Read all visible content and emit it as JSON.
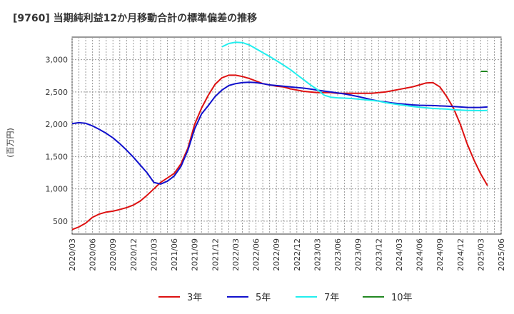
{
  "chart_data": {
    "type": "line",
    "title": "[9760]  当期純利益12か月移動合計の標準偏差の推移",
    "ylabel": "(百万円)",
    "xlabel": "",
    "ylim": [
      300,
      3350
    ],
    "yticks": [
      500,
      1000,
      1500,
      2000,
      2500,
      3000
    ],
    "ytick_labels": [
      "500",
      "1,000",
      "1,500",
      "2,000",
      "2,500",
      "3,000"
    ],
    "xticks": [
      "2020/03",
      "2020/06",
      "2020/09",
      "2020/12",
      "2021/03",
      "2021/06",
      "2021/09",
      "2021/12",
      "2022/03",
      "2022/06",
      "2022/09",
      "2022/12",
      "2023/03",
      "2023/06",
      "2023/09",
      "2023/12",
      "2024/03",
      "2024/06",
      "2024/09",
      "2024/12",
      "2025/03",
      "2025/06"
    ],
    "grid": true,
    "legend_position": "bottom",
    "series": [
      {
        "name": "3年",
        "color": "#dd1111",
        "points": [
          [
            "2020/03",
            370
          ],
          [
            "2020/04",
            410
          ],
          [
            "2020/05",
            470
          ],
          [
            "2020/06",
            560
          ],
          [
            "2020/07",
            610
          ],
          [
            "2020/08",
            640
          ],
          [
            "2020/09",
            655
          ],
          [
            "2020/10",
            680
          ],
          [
            "2020/11",
            710
          ],
          [
            "2020/12",
            750
          ],
          [
            "2021/01",
            810
          ],
          [
            "2021/02",
            900
          ],
          [
            "2021/03",
            1000
          ],
          [
            "2021/04",
            1100
          ],
          [
            "2021/05",
            1170
          ],
          [
            "2021/06",
            1240
          ],
          [
            "2021/07",
            1390
          ],
          [
            "2021/08",
            1630
          ],
          [
            "2021/09",
            2000
          ],
          [
            "2021/10",
            2250
          ],
          [
            "2021/11",
            2450
          ],
          [
            "2021/12",
            2620
          ],
          [
            "2022/01",
            2720
          ],
          [
            "2022/02",
            2760
          ],
          [
            "2022/03",
            2760
          ],
          [
            "2022/04",
            2740
          ],
          [
            "2022/05",
            2710
          ],
          [
            "2022/06",
            2670
          ],
          [
            "2022/07",
            2630
          ],
          [
            "2022/08",
            2610
          ],
          [
            "2022/09",
            2590
          ],
          [
            "2022/10",
            2580
          ],
          [
            "2022/11",
            2550
          ],
          [
            "2022/12",
            2530
          ],
          [
            "2023/01",
            2510
          ],
          [
            "2023/02",
            2500
          ],
          [
            "2023/03",
            2490
          ],
          [
            "2023/04",
            2490
          ],
          [
            "2023/05",
            2490
          ],
          [
            "2023/06",
            2480
          ],
          [
            "2023/07",
            2480
          ],
          [
            "2023/08",
            2480
          ],
          [
            "2023/09",
            2480
          ],
          [
            "2023/10",
            2480
          ],
          [
            "2023/11",
            2480
          ],
          [
            "2023/12",
            2490
          ],
          [
            "2024/01",
            2500
          ],
          [
            "2024/02",
            2520
          ],
          [
            "2024/03",
            2540
          ],
          [
            "2024/04",
            2560
          ],
          [
            "2024/05",
            2580
          ],
          [
            "2024/06",
            2610
          ],
          [
            "2024/07",
            2640
          ],
          [
            "2024/08",
            2645
          ],
          [
            "2024/09",
            2580
          ],
          [
            "2024/10",
            2430
          ],
          [
            "2024/11",
            2250
          ],
          [
            "2024/12",
            2000
          ],
          [
            "2025/01",
            1700
          ],
          [
            "2025/02",
            1450
          ],
          [
            "2025/03",
            1230
          ],
          [
            "2025/04",
            1050
          ]
        ]
      },
      {
        "name": "5年",
        "color": "#1111cc",
        "points": [
          [
            "2020/03",
            2010
          ],
          [
            "2020/04",
            2025
          ],
          [
            "2020/05",
            2015
          ],
          [
            "2020/06",
            1975
          ],
          [
            "2020/07",
            1920
          ],
          [
            "2020/08",
            1860
          ],
          [
            "2020/09",
            1790
          ],
          [
            "2020/10",
            1700
          ],
          [
            "2020/11",
            1600
          ],
          [
            "2020/12",
            1490
          ],
          [
            "2021/01",
            1370
          ],
          [
            "2021/02",
            1250
          ],
          [
            "2021/03",
            1100
          ],
          [
            "2021/04",
            1075
          ],
          [
            "2021/05",
            1120
          ],
          [
            "2021/06",
            1200
          ],
          [
            "2021/07",
            1350
          ],
          [
            "2021/08",
            1600
          ],
          [
            "2021/09",
            1930
          ],
          [
            "2021/10",
            2160
          ],
          [
            "2021/11",
            2290
          ],
          [
            "2021/12",
            2430
          ],
          [
            "2022/01",
            2530
          ],
          [
            "2022/02",
            2600
          ],
          [
            "2022/03",
            2630
          ],
          [
            "2022/04",
            2645
          ],
          [
            "2022/05",
            2650
          ],
          [
            "2022/06",
            2645
          ],
          [
            "2022/07",
            2630
          ],
          [
            "2022/08",
            2610
          ],
          [
            "2022/09",
            2600
          ],
          [
            "2022/10",
            2590
          ],
          [
            "2022/11",
            2580
          ],
          [
            "2022/12",
            2570
          ],
          [
            "2023/01",
            2560
          ],
          [
            "2023/02",
            2545
          ],
          [
            "2023/03",
            2530
          ],
          [
            "2023/04",
            2515
          ],
          [
            "2023/05",
            2500
          ],
          [
            "2023/06",
            2485
          ],
          [
            "2023/07",
            2470
          ],
          [
            "2023/08",
            2450
          ],
          [
            "2023/09",
            2430
          ],
          [
            "2023/10",
            2405
          ],
          [
            "2023/11",
            2380
          ],
          [
            "2023/12",
            2360
          ],
          [
            "2024/01",
            2345
          ],
          [
            "2024/02",
            2330
          ],
          [
            "2024/03",
            2320
          ],
          [
            "2024/04",
            2310
          ],
          [
            "2024/05",
            2300
          ],
          [
            "2024/06",
            2295
          ],
          [
            "2024/07",
            2292
          ],
          [
            "2024/08",
            2290
          ],
          [
            "2024/09",
            2285
          ],
          [
            "2024/10",
            2280
          ],
          [
            "2024/11",
            2275
          ],
          [
            "2024/12",
            2268
          ],
          [
            "2025/01",
            2262
          ],
          [
            "2025/02",
            2260
          ],
          [
            "2025/03",
            2262
          ],
          [
            "2025/04",
            2268
          ]
        ]
      },
      {
        "name": "7年",
        "color": "#22eeee",
        "points": [
          [
            "2022/01",
            3200
          ],
          [
            "2022/02",
            3250
          ],
          [
            "2022/03",
            3270
          ],
          [
            "2022/04",
            3265
          ],
          [
            "2022/05",
            3230
          ],
          [
            "2022/06",
            3170
          ],
          [
            "2022/07",
            3110
          ],
          [
            "2022/08",
            3050
          ],
          [
            "2022/09",
            2985
          ],
          [
            "2022/10",
            2920
          ],
          [
            "2022/11",
            2850
          ],
          [
            "2022/12",
            2770
          ],
          [
            "2023/01",
            2690
          ],
          [
            "2023/02",
            2610
          ],
          [
            "2023/03",
            2540
          ],
          [
            "2023/04",
            2450
          ],
          [
            "2023/05",
            2420
          ],
          [
            "2023/06",
            2410
          ],
          [
            "2023/07",
            2405
          ],
          [
            "2023/08",
            2400
          ],
          [
            "2023/09",
            2390
          ],
          [
            "2023/10",
            2380
          ],
          [
            "2023/11",
            2370
          ],
          [
            "2023/12",
            2360
          ],
          [
            "2024/01",
            2335
          ],
          [
            "2024/02",
            2320
          ],
          [
            "2024/03",
            2305
          ],
          [
            "2024/04",
            2290
          ],
          [
            "2024/05",
            2275
          ],
          [
            "2024/06",
            2265
          ],
          [
            "2024/07",
            2255
          ],
          [
            "2024/08",
            2245
          ],
          [
            "2024/09",
            2240
          ],
          [
            "2024/10",
            2235
          ],
          [
            "2024/11",
            2225
          ],
          [
            "2024/12",
            2220
          ],
          [
            "2025/01",
            2215
          ],
          [
            "2025/02",
            2213
          ],
          [
            "2025/03",
            2212
          ],
          [
            "2025/04",
            2215
          ]
        ]
      },
      {
        "name": "10年",
        "color": "#228822",
        "points": [
          [
            "2025/03",
            2820
          ],
          [
            "2025/04",
            2820
          ]
        ]
      }
    ]
  }
}
